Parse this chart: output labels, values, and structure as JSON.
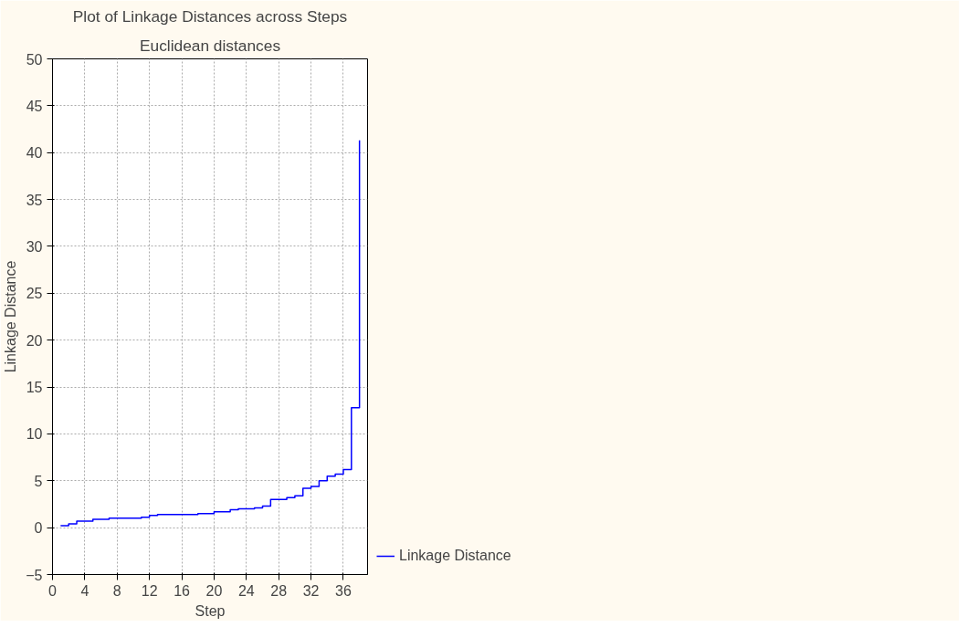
{
  "chart_data": {
    "type": "step",
    "title": "Plot of Linkage Distances across Steps",
    "subtitle": "Euclidean distances",
    "xlabel": "Step",
    "ylabel": "Linkage Distance",
    "x": [
      1,
      2,
      3,
      4,
      5,
      6,
      7,
      8,
      9,
      10,
      11,
      12,
      13,
      14,
      15,
      16,
      17,
      18,
      19,
      20,
      21,
      22,
      23,
      24,
      25,
      26,
      27,
      28,
      29,
      30,
      31,
      32,
      33,
      34,
      35,
      36,
      37,
      38
    ],
    "series": [
      {
        "name": "Linkage Distance",
        "color": "#0000ff",
        "values": [
          0.2,
          0.4,
          0.7,
          0.7,
          0.9,
          0.9,
          1.0,
          1.0,
          1.0,
          1.0,
          1.1,
          1.3,
          1.4,
          1.4,
          1.4,
          1.4,
          1.4,
          1.5,
          1.5,
          1.7,
          1.7,
          1.9,
          2.0,
          2.0,
          2.1,
          2.3,
          3.0,
          3.0,
          3.2,
          3.4,
          4.2,
          4.4,
          5.0,
          5.5,
          5.7,
          6.2,
          12.8,
          41.3
        ]
      }
    ],
    "xlim": [
      0,
      39
    ],
    "xticks": [
      0,
      4,
      8,
      12,
      16,
      20,
      24,
      28,
      32,
      36
    ],
    "ylim": [
      -5,
      50
    ],
    "yticks": [
      -5,
      0,
      5,
      10,
      15,
      20,
      25,
      30,
      35,
      40,
      45,
      50
    ],
    "grid": true,
    "legend": "right",
    "line_style": "solid",
    "marker": "none"
  }
}
